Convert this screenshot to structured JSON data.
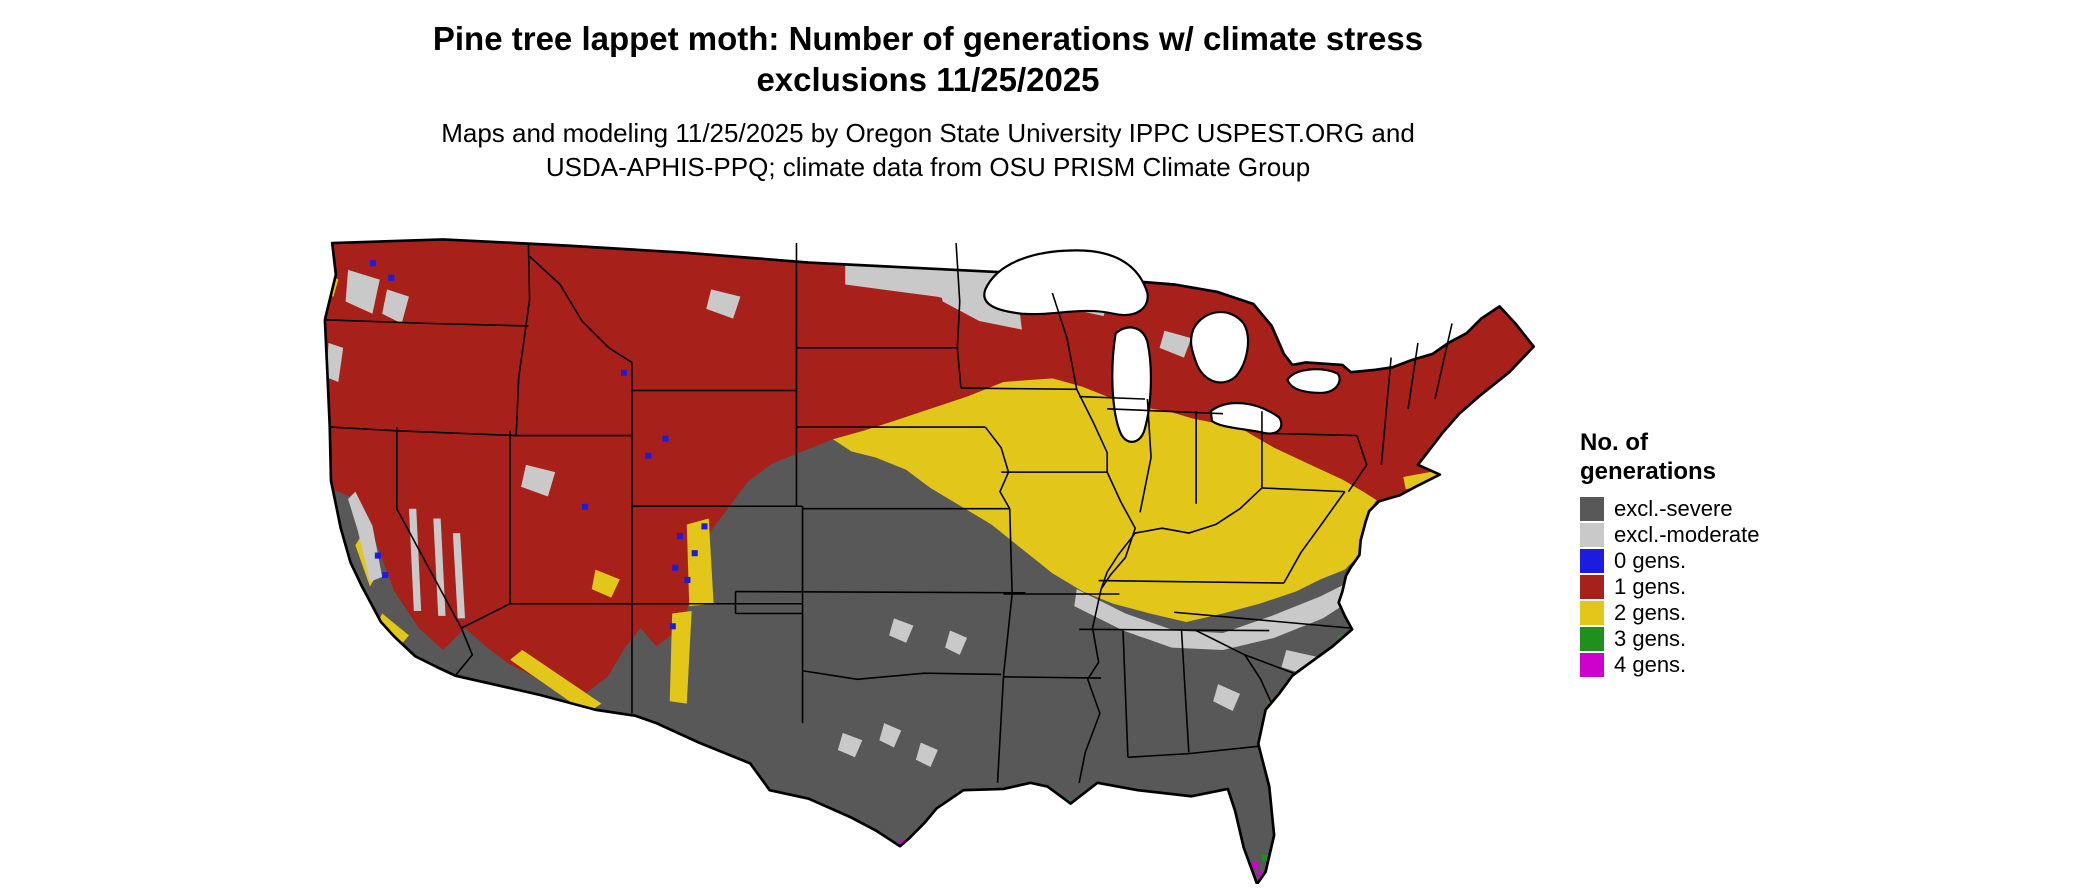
{
  "header": {
    "title_line1": "Pine tree lappet moth: Number of generations w/ climate stress",
    "title_line2": "exclusions 11/25/2025",
    "subtitle_line1": "Maps and modeling 11/25/2025 by Oregon State University IPPC USPEST.ORG and",
    "subtitle_line2": "USDA-APHIS-PPQ; climate data from OSU PRISM Climate Group"
  },
  "legend": {
    "title_line1": "No. of",
    "title_line2": "generations",
    "items": [
      {
        "label": "excl.-severe",
        "color": "#585858"
      },
      {
        "label": "excl.-moderate",
        "color": "#c9c9c9"
      },
      {
        "label": "0 gens.",
        "color": "#1c1ce0"
      },
      {
        "label": "1 gens.",
        "color": "#a8201a"
      },
      {
        "label": "2 gens.",
        "color": "#e2c619"
      },
      {
        "label": "3 gens.",
        "color": "#1f8f1f"
      },
      {
        "label": "4 gens.",
        "color": "#cc00cc"
      }
    ]
  }
}
